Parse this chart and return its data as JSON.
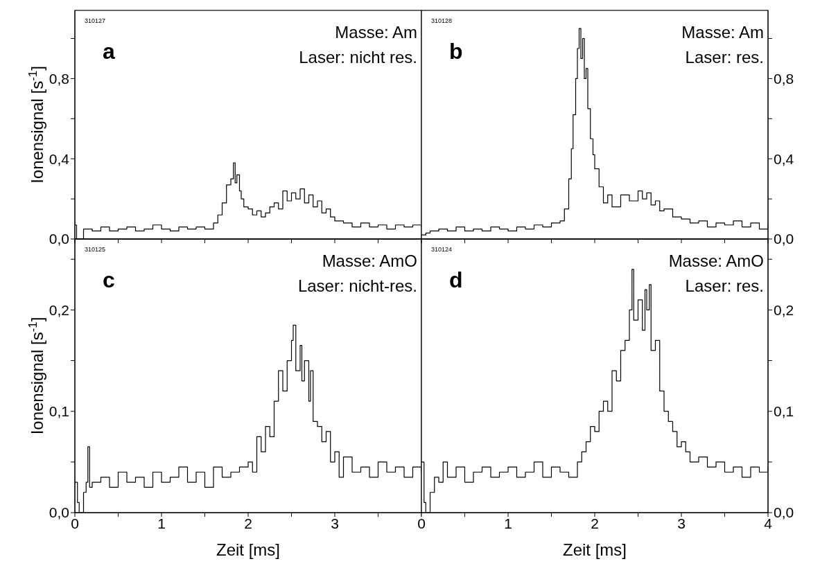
{
  "chart_data": [
    {
      "type": "step",
      "annotations": [
        "310127",
        "a",
        "Masse: Am",
        "Laser: nicht res."
      ],
      "ylabel": "Ionensignal [s$^{-1}$]",
      "tick_labels": "y",
      "xlim": [
        0,
        4
      ],
      "ylim": [
        0,
        1.14
      ],
      "xticks": [
        {
          "value": 0,
          "label": null
        },
        {
          "value": 0.5,
          "label": null
        },
        {
          "value": 1,
          "label": null
        },
        {
          "value": 1.5,
          "label": null
        },
        {
          "value": 2,
          "label": null
        },
        {
          "value": 2.5,
          "label": null
        },
        {
          "value": 3,
          "label": null
        },
        {
          "value": 3.5,
          "label": null
        },
        {
          "value": 4,
          "label": null
        }
      ],
      "yticks": [
        {
          "value": 0,
          "label": "0,0"
        },
        {
          "value": 0.2,
          "label": null
        },
        {
          "value": 0.4,
          "label": "0,4"
        },
        {
          "value": 0.6,
          "label": null
        },
        {
          "value": 0.8,
          "label": "0,8"
        },
        {
          "value": 1.0,
          "label": null
        }
      ],
      "series": [
        {
          "color": "#000000",
          "x": [
            0,
            0.02,
            0.08,
            0.1,
            0.2,
            0.3,
            0.4,
            0.5,
            0.6,
            0.7,
            0.8,
            0.9,
            1.0,
            1.1,
            1.2,
            1.3,
            1.4,
            1.5,
            1.6,
            1.65,
            1.7,
            1.75,
            1.8,
            1.83,
            1.85,
            1.87,
            1.9,
            1.92,
            1.95,
            2.0,
            2.05,
            2.1,
            2.15,
            2.2,
            2.25,
            2.3,
            2.35,
            2.4,
            2.45,
            2.5,
            2.55,
            2.6,
            2.65,
            2.7,
            2.75,
            2.8,
            2.85,
            2.9,
            2.95,
            3.0,
            3.1,
            3.2,
            3.3,
            3.4,
            3.5,
            3.6,
            3.7,
            3.8,
            3.9,
            4.0
          ],
          "values": [
            0.07,
            0.0,
            0.0,
            0.05,
            0.04,
            0.06,
            0.04,
            0.05,
            0.06,
            0.04,
            0.05,
            0.07,
            0.05,
            0.04,
            0.06,
            0.05,
            0.06,
            0.05,
            0.08,
            0.12,
            0.18,
            0.27,
            0.3,
            0.38,
            0.28,
            0.32,
            0.24,
            0.2,
            0.16,
            0.15,
            0.12,
            0.14,
            0.11,
            0.13,
            0.16,
            0.18,
            0.15,
            0.24,
            0.19,
            0.23,
            0.2,
            0.25,
            0.18,
            0.22,
            0.16,
            0.19,
            0.13,
            0.15,
            0.11,
            0.09,
            0.08,
            0.06,
            0.08,
            0.06,
            0.07,
            0.05,
            0.07,
            0.06,
            0.07,
            0.06
          ]
        }
      ]
    },
    {
      "type": "step",
      "annotations": [
        "310128",
        "b",
        "Masse: Am",
        "Laser: res."
      ],
      "tick_labels": "y",
      "xlim": [
        0,
        4
      ],
      "ylim": [
        0,
        1.14
      ],
      "xticks": [
        {
          "value": 0,
          "label": null
        },
        {
          "value": 0.5,
          "label": null
        },
        {
          "value": 1,
          "label": null
        },
        {
          "value": 1.5,
          "label": null
        },
        {
          "value": 2,
          "label": null
        },
        {
          "value": 2.5,
          "label": null
        },
        {
          "value": 3,
          "label": null
        },
        {
          "value": 3.5,
          "label": null
        },
        {
          "value": 4,
          "label": null
        }
      ],
      "yticks": [
        {
          "value": 0,
          "label": "0,0"
        },
        {
          "value": 0.2,
          "label": null
        },
        {
          "value": 0.4,
          "label": "0,4"
        },
        {
          "value": 0.6,
          "label": null
        },
        {
          "value": 0.8,
          "label": "0,8"
        },
        {
          "value": 1.0,
          "label": null
        }
      ],
      "series": [
        {
          "color": "#000000",
          "x": [
            0,
            0.05,
            0.1,
            0.2,
            0.3,
            0.4,
            0.5,
            0.6,
            0.7,
            0.8,
            0.9,
            1.0,
            1.1,
            1.2,
            1.3,
            1.4,
            1.5,
            1.6,
            1.65,
            1.7,
            1.73,
            1.75,
            1.78,
            1.8,
            1.82,
            1.84,
            1.86,
            1.88,
            1.9,
            1.92,
            1.95,
            1.98,
            2.0,
            2.05,
            2.1,
            2.15,
            2.2,
            2.3,
            2.4,
            2.5,
            2.55,
            2.6,
            2.65,
            2.7,
            2.75,
            2.8,
            2.9,
            3.0,
            3.1,
            3.2,
            3.3,
            3.4,
            3.5,
            3.6,
            3.7,
            3.8,
            3.9,
            4.0
          ],
          "values": [
            0.02,
            0.03,
            0.04,
            0.05,
            0.04,
            0.06,
            0.04,
            0.05,
            0.04,
            0.06,
            0.05,
            0.04,
            0.06,
            0.05,
            0.07,
            0.06,
            0.08,
            0.09,
            0.15,
            0.3,
            0.45,
            0.62,
            0.8,
            0.95,
            1.05,
            0.9,
            1.0,
            0.8,
            0.85,
            0.65,
            0.5,
            0.42,
            0.35,
            0.26,
            0.18,
            0.22,
            0.16,
            0.22,
            0.19,
            0.24,
            0.2,
            0.23,
            0.17,
            0.19,
            0.14,
            0.15,
            0.11,
            0.1,
            0.08,
            0.09,
            0.06,
            0.08,
            0.07,
            0.09,
            0.06,
            0.08,
            0.05,
            0.07
          ]
        }
      ]
    },
    {
      "type": "step",
      "annotations": [
        "310125",
        "c",
        "Masse: AmO",
        "Laser: nicht-res."
      ],
      "ylabel": "Ionensignal [s$^{-1}$]",
      "xlabel": "Zeit [ms]",
      "xlim": [
        0,
        4
      ],
      "ylim": [
        0,
        0.27
      ],
      "xticks": [
        0,
        {
          "value": 0.5,
          "label": null
        },
        1,
        {
          "value": 1.5,
          "label": null
        },
        2,
        {
          "value": 2.5,
          "label": null
        },
        3,
        {
          "value": 3.5,
          "label": null
        },
        {
          "value": 4,
          "label": null
        }
      ],
      "yticks": [
        {
          "value": 0,
          "label": "0,0"
        },
        {
          "value": 0.05,
          "label": null
        },
        {
          "value": 0.1,
          "label": "0,1"
        },
        {
          "value": 0.15,
          "label": null
        },
        {
          "value": 0.2,
          "label": "0,2"
        },
        {
          "value": 0.25,
          "label": null
        }
      ],
      "series": [
        {
          "color": "#000000",
          "x": [
            0,
            0.03,
            0.05,
            0.1,
            0.13,
            0.15,
            0.17,
            0.2,
            0.3,
            0.4,
            0.5,
            0.6,
            0.7,
            0.8,
            0.9,
            1.0,
            1.1,
            1.2,
            1.3,
            1.4,
            1.5,
            1.6,
            1.7,
            1.8,
            1.9,
            2.0,
            2.05,
            2.1,
            2.15,
            2.2,
            2.25,
            2.3,
            2.35,
            2.4,
            2.45,
            2.5,
            2.52,
            2.55,
            2.6,
            2.62,
            2.65,
            2.7,
            2.72,
            2.75,
            2.8,
            2.85,
            2.9,
            2.95,
            3.0,
            3.05,
            3.1,
            3.2,
            3.3,
            3.4,
            3.5,
            3.6,
            3.7,
            3.8,
            3.9,
            4.0
          ],
          "values": [
            0.03,
            0.01,
            0.0,
            0.02,
            0.03,
            0.065,
            0.025,
            0.03,
            0.035,
            0.025,
            0.04,
            0.03,
            0.035,
            0.025,
            0.04,
            0.03,
            0.035,
            0.045,
            0.03,
            0.04,
            0.025,
            0.045,
            0.035,
            0.04,
            0.045,
            0.05,
            0.04,
            0.075,
            0.06,
            0.085,
            0.075,
            0.11,
            0.14,
            0.12,
            0.15,
            0.17,
            0.185,
            0.14,
            0.165,
            0.13,
            0.15,
            0.11,
            0.14,
            0.09,
            0.085,
            0.07,
            0.08,
            0.05,
            0.06,
            0.035,
            0.055,
            0.04,
            0.045,
            0.035,
            0.05,
            0.04,
            0.045,
            0.035,
            0.045,
            0.04
          ]
        }
      ]
    },
    {
      "type": "step",
      "annotations": [
        "310124",
        "d",
        "Masse: AmO",
        "Laser: res."
      ],
      "xlabel": "Zeit [ms]",
      "xlim": [
        0,
        4
      ],
      "ylim": [
        0,
        0.27
      ],
      "xticks": [
        0,
        {
          "value": 0.5,
          "label": null
        },
        1,
        {
          "value": 1.5,
          "label": null
        },
        2,
        {
          "value": 2.5,
          "label": null
        },
        3,
        {
          "value": 3.5,
          "label": null
        },
        4
      ],
      "yticks": [
        {
          "value": 0,
          "label": "0,0"
        },
        {
          "value": 0.05,
          "label": null
        },
        {
          "value": 0.1,
          "label": "0,1"
        },
        {
          "value": 0.15,
          "label": null
        },
        {
          "value": 0.2,
          "label": "0,2"
        },
        {
          "value": 0.25,
          "label": null
        }
      ],
      "series": [
        {
          "color": "#000000",
          "x": [
            0,
            0.03,
            0.05,
            0.1,
            0.15,
            0.2,
            0.25,
            0.3,
            0.4,
            0.5,
            0.6,
            0.7,
            0.8,
            0.9,
            1.0,
            1.1,
            1.2,
            1.3,
            1.4,
            1.5,
            1.6,
            1.7,
            1.8,
            1.85,
            1.9,
            1.95,
            2.0,
            2.05,
            2.1,
            2.15,
            2.2,
            2.25,
            2.3,
            2.35,
            2.4,
            2.43,
            2.45,
            2.5,
            2.55,
            2.58,
            2.6,
            2.63,
            2.65,
            2.7,
            2.75,
            2.8,
            2.85,
            2.9,
            2.95,
            3.0,
            3.05,
            3.1,
            3.2,
            3.3,
            3.4,
            3.5,
            3.6,
            3.7,
            3.8,
            3.9,
            4.0
          ],
          "values": [
            0.05,
            0.01,
            0.0,
            0.02,
            0.035,
            0.03,
            0.05,
            0.035,
            0.045,
            0.03,
            0.04,
            0.045,
            0.035,
            0.04,
            0.045,
            0.035,
            0.04,
            0.05,
            0.035,
            0.045,
            0.04,
            0.035,
            0.05,
            0.06,
            0.07,
            0.085,
            0.08,
            0.1,
            0.11,
            0.1,
            0.14,
            0.13,
            0.16,
            0.17,
            0.2,
            0.24,
            0.19,
            0.21,
            0.18,
            0.22,
            0.2,
            0.225,
            0.16,
            0.17,
            0.12,
            0.1,
            0.09,
            0.08,
            0.065,
            0.07,
            0.06,
            0.05,
            0.055,
            0.045,
            0.05,
            0.04,
            0.045,
            0.035,
            0.045,
            0.04,
            0.045
          ]
        }
      ]
    }
  ]
}
